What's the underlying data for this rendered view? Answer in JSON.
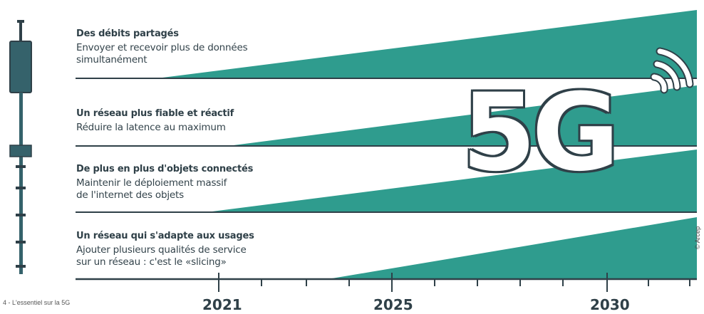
{
  "logo": "5G",
  "rows": [
    {
      "title": "Des débits partagés",
      "desc1": "Envoyer et recevoir plus de données",
      "desc2": "simultanément"
    },
    {
      "title": "Un réseau plus fiable et réactif",
      "desc1": "Réduire la latence au maximum",
      "desc2": ""
    },
    {
      "title": "De plus en plus d'objets connectés",
      "desc1": "Maintenir le déploiement massif",
      "desc2": "de l'internet des objets"
    },
    {
      "title": "Un réseau qui s'adapte aux usages",
      "desc1": "Ajouter plusieurs qualités de service",
      "desc2": "sur un réseau : c'est le «slicing»"
    }
  ],
  "timeline": {
    "years": [
      "2021",
      "2025",
      "2030"
    ]
  },
  "footer": "4 - L'essentiel sur la 5G",
  "credit": "© Arcep",
  "colors": {
    "teal": "#2f9c8e",
    "dark": "#2f4048"
  },
  "icons": [
    "antenna-icon",
    "signal-waves-icon"
  ]
}
